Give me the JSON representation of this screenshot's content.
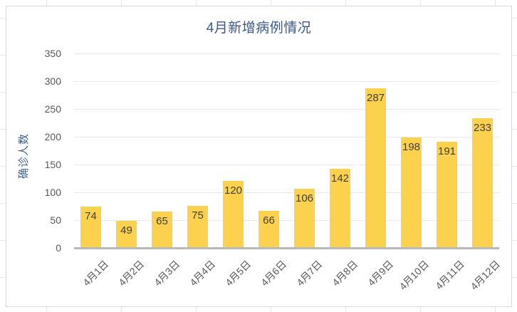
{
  "chart_data": {
    "type": "bar",
    "title": "4月新增病例情况",
    "xlabel": "",
    "ylabel": "确诊人数",
    "categories": [
      "4月1日",
      "4月2日",
      "4月3日",
      "4月4日",
      "4月5日",
      "4月6日",
      "4月7日",
      "4月8日",
      "4月9日",
      "4月10日",
      "4月11日",
      "4月12日"
    ],
    "values": [
      74,
      49,
      65,
      75,
      120,
      66,
      106,
      142,
      287,
      198,
      191,
      233
    ],
    "ylim": [
      0,
      350
    ],
    "yticks": [
      0,
      50,
      100,
      150,
      200,
      250,
      300,
      350
    ],
    "grid": "horizontal",
    "legend": "none",
    "data_labels": "inside-end",
    "x_label_rotation_deg": 45,
    "colors": {
      "bar": "#FBD14D",
      "bar_value_label": "#3F3F3F",
      "title": "#38598C",
      "y_axis_title": "#3F628F",
      "axis_tick_text": "#595959",
      "gridline": "#EAEAEA",
      "axis_line": "#B9B9B9",
      "chart_border": "#D8D8D8",
      "sheet_gridline": "#E4E6E9",
      "background": "#FFFFFF"
    }
  }
}
